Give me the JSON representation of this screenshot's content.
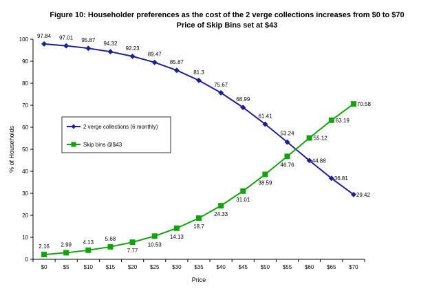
{
  "chart_data": {
    "type": "line",
    "title": "Figure 10: Householder preferences as the cost of the 2 verge collections increases from $0 to $70",
    "subtitle": "Price of Skip Bins set at $43",
    "xlabel": "Price",
    "ylabel": "% of Households",
    "categories": [
      "$0",
      "$5",
      "$10",
      "$15",
      "$20",
      "$25",
      "$30",
      "$35",
      "$40",
      "$45",
      "$50",
      "$55",
      "$60",
      "$65",
      "$70"
    ],
    "ylim": [
      0,
      100
    ],
    "yticks": [
      0,
      10,
      20,
      30,
      40,
      50,
      60,
      70,
      80,
      90,
      100
    ],
    "grid": false,
    "legend_position": "left-middle",
    "series": [
      {
        "name": "2 verge collections (6 monthly)",
        "color": "#1f1f8f",
        "marker": "diamond",
        "values": [
          97.84,
          97.01,
          95.87,
          94.32,
          92.23,
          89.47,
          85.87,
          81.3,
          75.67,
          68.99,
          61.41,
          53.24,
          44.88,
          36.81,
          29.42
        ],
        "labels": [
          "97.84",
          "97.01",
          "95.87",
          "94.32",
          "92.23",
          "89.47",
          "85.87",
          "81.3",
          "75.67",
          "68.99",
          "61.41",
          "53.24",
          "44.88",
          "36.81",
          "29.42"
        ]
      },
      {
        "name": "Skip bins @$43",
        "color": "#13a10e",
        "marker": "square",
        "values": [
          2.16,
          2.99,
          4.13,
          5.68,
          7.77,
          10.53,
          14.13,
          18.7,
          24.33,
          31.01,
          38.59,
          46.76,
          55.12,
          63.19,
          70.58
        ],
        "labels": [
          "2.16",
          "2.99",
          "4.13",
          "5.68",
          "7.77",
          "10.53",
          "14.13",
          "18.7",
          "24.33",
          "31.01",
          "38.59",
          "46.76",
          "55.12",
          "63.19",
          "70.58"
        ]
      }
    ]
  }
}
